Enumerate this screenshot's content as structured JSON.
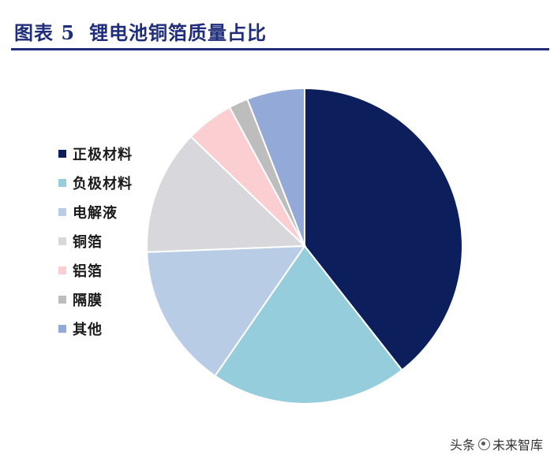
{
  "colors": {
    "title": "#1F2D7A",
    "rule": "#1F2D7A",
    "legend_text": "#1A1A1A",
    "slice_stroke": "#ffffff"
  },
  "chart_data": {
    "type": "pie",
    "title_label": "图表 5",
    "title": "锂电池铜箔质量占比",
    "legend_position": "left",
    "start_angle_deg": 0,
    "direction": "clockwise",
    "slices": [
      {
        "label": "正极材料",
        "value": 40.0,
        "color": "#0C1F5C"
      },
      {
        "label": "负极材料",
        "value": 20.5,
        "color": "#96CDDD"
      },
      {
        "label": "电解液",
        "value": 15.0,
        "color": "#B8CCE6"
      },
      {
        "label": "铜箔",
        "value": 13.0,
        "color": "#D8D7DB"
      },
      {
        "label": "铝箔",
        "value": 5.0,
        "color": "#FBCFD2"
      },
      {
        "label": "隔膜",
        "value": 2.0,
        "color": "#BDBDBD"
      },
      {
        "label": "其他",
        "value": 6.0,
        "color": "#93A9D8"
      }
    ]
  },
  "watermark": {
    "prefix": "头条",
    "icon": "at-icon",
    "name": "未来智库"
  }
}
